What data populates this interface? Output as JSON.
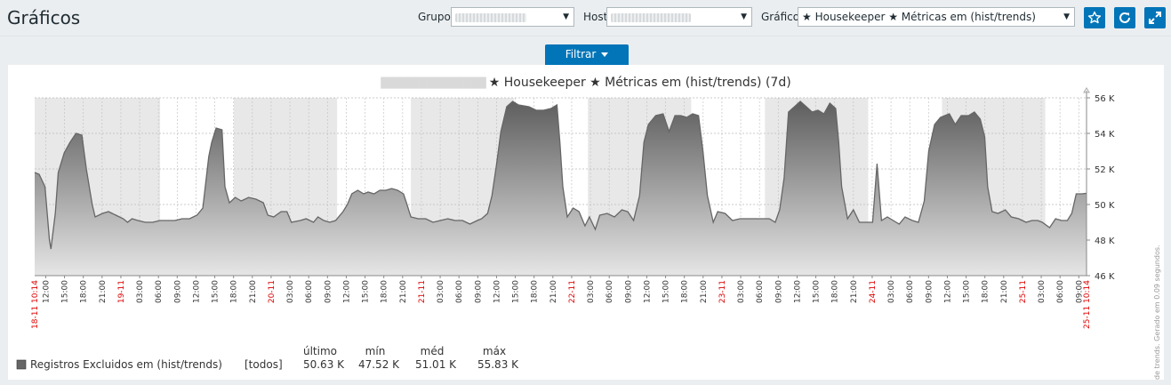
{
  "page": {
    "title": "Gráficos"
  },
  "filters": {
    "group_label": "Grupo",
    "host_label": "Host",
    "graph_label": "Gráfico",
    "graph_value": "★ Housekeeper ★ Métricas em (hist/trends)",
    "filter_button": "Filtrar"
  },
  "graph": {
    "title": "★ Housekeeper ★ Métricas em (hist/trends) (7d)",
    "watermark": "Dado de trends. Gerado em 0.09 segundos.",
    "series_color": "#666666"
  },
  "legend": {
    "headers": [
      "último",
      "mín",
      "méd",
      "máx"
    ],
    "rows": [
      {
        "name": "Registros Excluidos em (hist/trends)",
        "func": "[todos]",
        "last": "50.63 K",
        "min": "47.52 K",
        "avg": "51.01 K",
        "max": "55.83 K"
      }
    ]
  },
  "chart_data": {
    "type": "area",
    "ylim": [
      46000,
      56000
    ],
    "yticks": [
      "46 K",
      "48 K",
      "50 K",
      "52 K",
      "54 K",
      "56 K"
    ],
    "start_label": "18-11 10:14",
    "end_label": "25-11 10:14",
    "xticks": [
      "12:00",
      "15:00",
      "18:00",
      "21:00",
      "19-11",
      "03:00",
      "06:00",
      "09:00",
      "12:00",
      "15:00",
      "18:00",
      "21:00",
      "20-11",
      "03:00",
      "06:00",
      "09:00",
      "12:00",
      "15:00",
      "18:00",
      "21:00",
      "21-11",
      "03:00",
      "06:00",
      "09:00",
      "12:00",
      "15:00",
      "18:00",
      "21:00",
      "22-11",
      "03:00",
      "06:00",
      "09:00",
      "12:00",
      "15:00",
      "18:00",
      "21:00",
      "23-11",
      "03:00",
      "06:00",
      "09:00",
      "12:00",
      "15:00",
      "18:00",
      "21:00",
      "24-11",
      "03:00",
      "06:00",
      "09:00",
      "12:00",
      "15:00",
      "18:00",
      "21:00",
      "25-11",
      "03:00",
      "06:00",
      "09:00"
    ],
    "red_labels": [
      "18-11 10:14",
      "19-11",
      "20-11",
      "21-11",
      "22-11",
      "23-11",
      "24-11",
      "25-11",
      "25-11 10:14"
    ],
    "series": [
      {
        "name": "Registros Excluidos em (hist/trends)",
        "points": [
          [
            0,
            51.8
          ],
          [
            0.3,
            51.7
          ],
          [
            0.7,
            51.0
          ],
          [
            1.0,
            48.0
          ],
          [
            1.1,
            47.5
          ],
          [
            1.4,
            49.5
          ],
          [
            1.6,
            51.8
          ],
          [
            2.0,
            52.9
          ],
          [
            2.4,
            53.5
          ],
          [
            2.8,
            54.0
          ],
          [
            3.2,
            53.9
          ],
          [
            3.5,
            52.0
          ],
          [
            3.9,
            50.0
          ],
          [
            4.1,
            49.3
          ],
          [
            4.6,
            49.5
          ],
          [
            5.0,
            49.6
          ],
          [
            5.5,
            49.4
          ],
          [
            6.0,
            49.2
          ],
          [
            6.3,
            49.0
          ],
          [
            6.6,
            49.2
          ],
          [
            7.0,
            49.1
          ],
          [
            7.5,
            49.0
          ],
          [
            8.0,
            49.0
          ],
          [
            8.5,
            49.1
          ],
          [
            9.0,
            49.1
          ],
          [
            9.5,
            49.1
          ],
          [
            10.0,
            49.2
          ],
          [
            10.5,
            49.2
          ],
          [
            11.0,
            49.4
          ],
          [
            11.4,
            49.8
          ],
          [
            11.8,
            52.7
          ],
          [
            12.0,
            53.5
          ],
          [
            12.3,
            54.3
          ],
          [
            12.7,
            54.2
          ],
          [
            12.9,
            51.0
          ],
          [
            13.2,
            50.1
          ],
          [
            13.6,
            50.4
          ],
          [
            14.0,
            50.2
          ],
          [
            14.5,
            50.4
          ],
          [
            15.0,
            50.3
          ],
          [
            15.5,
            50.1
          ],
          [
            15.8,
            49.4
          ],
          [
            16.2,
            49.3
          ],
          [
            16.7,
            49.6
          ],
          [
            17.1,
            49.6
          ],
          [
            17.4,
            49.0
          ],
          [
            18.0,
            49.1
          ],
          [
            18.4,
            49.2
          ],
          [
            18.9,
            49.0
          ],
          [
            19.2,
            49.3
          ],
          [
            19.6,
            49.1
          ],
          [
            20.0,
            49.0
          ],
          [
            20.4,
            49.1
          ],
          [
            20.9,
            49.6
          ],
          [
            21.2,
            50.0
          ],
          [
            21.5,
            50.6
          ],
          [
            21.9,
            50.8
          ],
          [
            22.3,
            50.6
          ],
          [
            22.6,
            50.7
          ],
          [
            23.0,
            50.6
          ],
          [
            23.4,
            50.8
          ],
          [
            23.8,
            50.8
          ],
          [
            24.2,
            50.9
          ],
          [
            24.6,
            50.8
          ],
          [
            25.0,
            50.6
          ],
          [
            25.2,
            50.1
          ],
          [
            25.5,
            49.3
          ],
          [
            26.0,
            49.2
          ],
          [
            26.5,
            49.2
          ],
          [
            27.0,
            49.0
          ],
          [
            27.5,
            49.1
          ],
          [
            28.0,
            49.2
          ],
          [
            28.5,
            49.1
          ],
          [
            29.0,
            49.1
          ],
          [
            29.5,
            48.9
          ],
          [
            30.0,
            49.1
          ],
          [
            30.3,
            49.2
          ],
          [
            30.7,
            49.5
          ],
          [
            31.0,
            50.5
          ],
          [
            31.3,
            52.2
          ],
          [
            31.6,
            54.1
          ],
          [
            32.0,
            55.5
          ],
          [
            32.4,
            55.8
          ],
          [
            32.8,
            55.6
          ],
          [
            33.5,
            55.5
          ],
          [
            34.0,
            55.3
          ],
          [
            34.5,
            55.3
          ],
          [
            35.0,
            55.4
          ],
          [
            35.4,
            55.6
          ],
          [
            35.6,
            53.5
          ],
          [
            35.8,
            51.0
          ],
          [
            36.1,
            49.3
          ],
          [
            36.5,
            49.8
          ],
          [
            36.9,
            49.6
          ],
          [
            37.3,
            48.8
          ],
          [
            37.6,
            49.3
          ],
          [
            38.0,
            48.6
          ],
          [
            38.3,
            49.4
          ],
          [
            38.8,
            49.5
          ],
          [
            39.3,
            49.3
          ],
          [
            39.8,
            49.7
          ],
          [
            40.2,
            49.6
          ],
          [
            40.6,
            49.1
          ],
          [
            41.0,
            50.5
          ],
          [
            41.3,
            53.5
          ],
          [
            41.6,
            54.5
          ],
          [
            42.1,
            55.0
          ],
          [
            42.6,
            55.1
          ],
          [
            43.0,
            54.1
          ],
          [
            43.4,
            55.0
          ],
          [
            43.8,
            55.0
          ],
          [
            44.2,
            54.9
          ],
          [
            44.6,
            55.1
          ],
          [
            45.0,
            55.0
          ],
          [
            45.3,
            53.0
          ],
          [
            45.6,
            50.5
          ],
          [
            46.0,
            49.0
          ],
          [
            46.3,
            49.6
          ],
          [
            46.8,
            49.5
          ],
          [
            47.3,
            49.1
          ],
          [
            47.8,
            49.2
          ],
          [
            48.3,
            49.2
          ],
          [
            48.8,
            49.2
          ],
          [
            49.3,
            49.2
          ],
          [
            49.8,
            49.2
          ],
          [
            50.2,
            49.0
          ],
          [
            50.5,
            49.7
          ],
          [
            50.8,
            51.5
          ],
          [
            51.1,
            55.2
          ],
          [
            51.5,
            55.5
          ],
          [
            51.9,
            55.8
          ],
          [
            52.3,
            55.5
          ],
          [
            52.7,
            55.2
          ],
          [
            53.1,
            55.3
          ],
          [
            53.5,
            55.1
          ],
          [
            53.9,
            55.7
          ],
          [
            54.3,
            55.4
          ],
          [
            54.5,
            53.5
          ],
          [
            54.7,
            51.0
          ],
          [
            55.1,
            49.2
          ],
          [
            55.5,
            49.7
          ],
          [
            55.9,
            49.0
          ],
          [
            56.4,
            49.0
          ],
          [
            56.8,
            49.0
          ],
          [
            57.1,
            52.3
          ],
          [
            57.4,
            49.1
          ],
          [
            57.8,
            49.3
          ],
          [
            58.2,
            49.1
          ],
          [
            58.6,
            48.9
          ],
          [
            59.0,
            49.3
          ],
          [
            59.5,
            49.1
          ],
          [
            59.9,
            49.0
          ],
          [
            60.3,
            50.2
          ],
          [
            60.6,
            53.0
          ],
          [
            61.0,
            54.5
          ],
          [
            61.4,
            54.9
          ],
          [
            62.0,
            55.1
          ],
          [
            62.4,
            54.5
          ],
          [
            62.8,
            55.0
          ],
          [
            63.3,
            55.0
          ],
          [
            63.7,
            55.2
          ],
          [
            64.1,
            54.8
          ],
          [
            64.4,
            53.8
          ],
          [
            64.6,
            51.0
          ],
          [
            64.9,
            49.6
          ],
          [
            65.3,
            49.5
          ],
          [
            65.8,
            49.7
          ],
          [
            66.2,
            49.3
          ],
          [
            66.7,
            49.2
          ],
          [
            67.2,
            49.0
          ],
          [
            67.6,
            49.1
          ],
          [
            68.0,
            49.1
          ],
          [
            68.3,
            49.0
          ],
          [
            68.8,
            48.7
          ],
          [
            69.2,
            49.2
          ],
          [
            69.6,
            49.1
          ],
          [
            70.0,
            49.1
          ],
          [
            70.3,
            49.5
          ],
          [
            70.6,
            50.6
          ],
          [
            71.0,
            50.6
          ],
          [
            71.3,
            50.63
          ]
        ]
      }
    ],
    "shaded_bands_hours": [
      [
        0,
        8.5
      ],
      [
        13.5,
        20.5
      ],
      [
        25.5,
        32.5
      ],
      [
        37.5,
        44.5
      ],
      [
        49.5,
        56.5
      ],
      [
        61.5,
        68.5
      ]
    ]
  }
}
